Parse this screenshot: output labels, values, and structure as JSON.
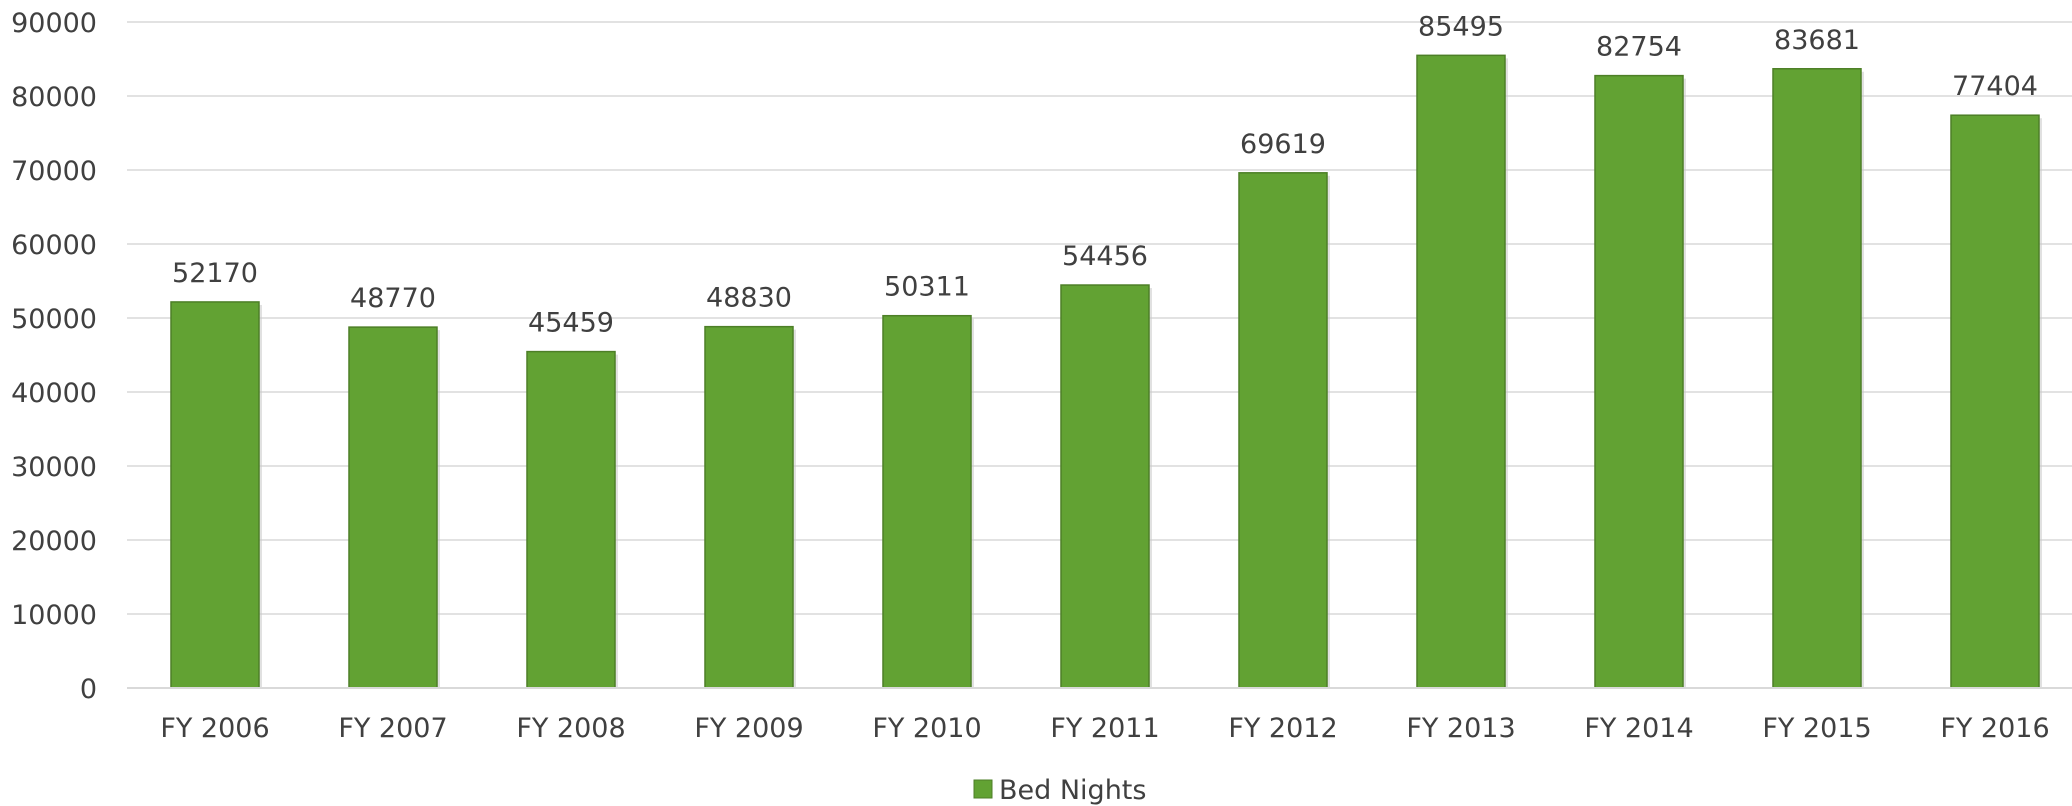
{
  "chart_data": {
    "type": "bar",
    "title": "",
    "xlabel": "",
    "ylabel": "",
    "categories": [
      "FY 2006",
      "FY 2007",
      "FY 2008",
      "FY 2009",
      "FY 2010",
      "FY 2011",
      "FY 2012",
      "FY 2013",
      "FY 2014",
      "FY 2015",
      "FY 2016"
    ],
    "series": [
      {
        "name": "Bed Nights",
        "values": [
          52170,
          48770,
          45459,
          48830,
          50311,
          54456,
          69619,
          85495,
          82754,
          83681,
          77404
        ],
        "color": "#62A233"
      }
    ],
    "ylim": [
      0,
      90000
    ],
    "y_ticks": [
      0,
      10000,
      20000,
      30000,
      40000,
      50000,
      60000,
      70000,
      80000,
      90000
    ],
    "grid": true,
    "legend_position": "bottom-center",
    "data_labels": true
  }
}
